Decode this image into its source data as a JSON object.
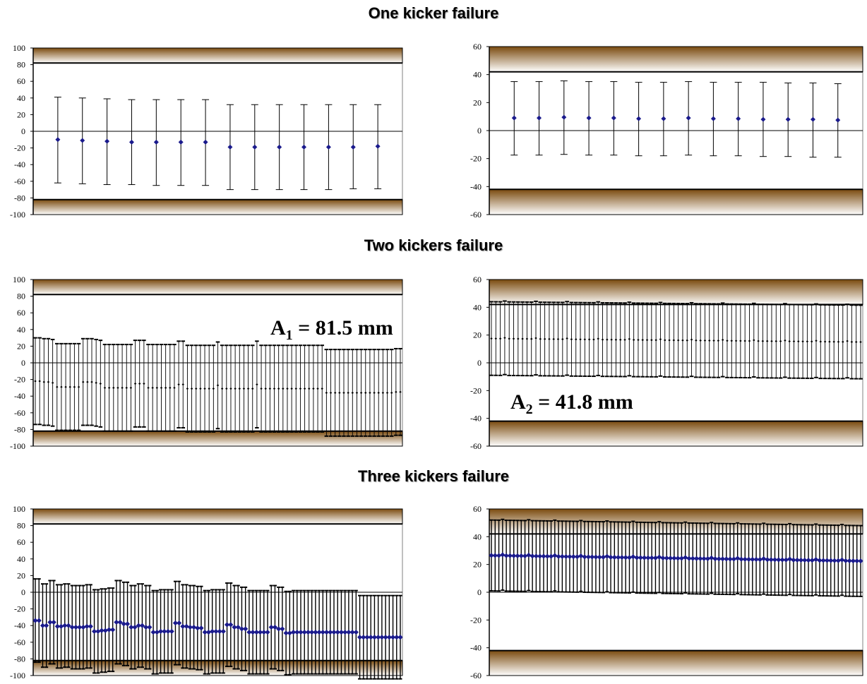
{
  "titles": {
    "one": "One kicker failure",
    "two": "Two kickers failure",
    "three": "Three kickers failure"
  },
  "colors": {
    "band_dark": "#7a4a0e",
    "band_light": "#ffffff",
    "marker_blue": "#1a1a8c",
    "marker_black": "#000000"
  },
  "chart_data": [
    {
      "type": "scatter",
      "title": "",
      "ylim": [
        -100,
        100
      ],
      "yticks": [
        "100",
        "80",
        "60",
        "40",
        "20",
        "0",
        "-20",
        "-40",
        "-60",
        "-80",
        "-100"
      ],
      "aperture_bands": [
        [
          82,
          100
        ],
        [
          -100,
          -82
        ]
      ],
      "series": [
        {
          "marker": "diamond",
          "y": [
            -10,
            -11,
            -12,
            -13,
            -13,
            -13,
            -13,
            -19,
            -19,
            -19,
            -19,
            -19,
            -19,
            -18
          ],
          "high": [
            41,
            40,
            39,
            38,
            38,
            38,
            38,
            32,
            32,
            32,
            32,
            32,
            32,
            32
          ],
          "low": [
            -62,
            -63,
            -64,
            -64,
            -65,
            -65,
            -65,
            -70,
            -70,
            -70,
            -70,
            -70,
            -69,
            -69
          ]
        }
      ]
    },
    {
      "type": "scatter",
      "title": "",
      "ylim": [
        -60,
        60
      ],
      "yticks": [
        "60",
        "40",
        "20",
        "0",
        "-20",
        "-40",
        "-60"
      ],
      "aperture_bands": [
        [
          42,
          60
        ],
        [
          -60,
          -42
        ]
      ],
      "series": [
        {
          "marker": "diamond",
          "y": [
            9,
            9,
            9.5,
            9,
            9,
            8.5,
            8.5,
            9,
            8.5,
            8.5,
            8,
            8,
            8,
            7.5
          ],
          "high": [
            35,
            35,
            35.5,
            35,
            35,
            34.5,
            34.5,
            35,
            34.5,
            34.5,
            34.5,
            34,
            34,
            33.5
          ],
          "low": [
            -17.5,
            -17.5,
            -17,
            -17.5,
            -17.5,
            -18,
            -18,
            -17.5,
            -18,
            -18,
            -18.5,
            -18.5,
            -19,
            -19
          ]
        }
      ]
    },
    {
      "type": "scatter",
      "title": "",
      "ylim": [
        -100,
        100
      ],
      "yticks": [
        "100",
        "80",
        "60",
        "40",
        "20",
        "0",
        "-20",
        "-40",
        "-60",
        "-80",
        "-100"
      ],
      "aperture_bands": [
        [
          82,
          100
        ],
        [
          -100,
          -82
        ]
      ],
      "annotation": {
        "text": "A",
        "sub": "1",
        "rest": " = 81.5 mm"
      },
      "series": [
        {
          "marker": "dot",
          "y": [
            -22,
            -22,
            -23,
            -23,
            -24,
            -29,
            -29,
            -29,
            -29,
            -29,
            -29,
            -23,
            -23,
            -23,
            -24,
            -25,
            -30,
            -30,
            -30,
            -30,
            -30,
            -30,
            -30,
            -25,
            -25,
            -25,
            -30,
            -30,
            -30,
            -30,
            -30,
            -30,
            -30,
            -26,
            -26,
            -31,
            -31,
            -31,
            -31,
            -31,
            -31,
            -31,
            -27,
            -31,
            -31,
            -31,
            -31,
            -31,
            -31,
            -31,
            -31,
            -26,
            -31,
            -31,
            -31,
            -31,
            -31,
            -31,
            -31,
            -31,
            -31,
            -31,
            -31,
            -31,
            -31,
            -31,
            -31,
            -36,
            -36,
            -36,
            -36,
            -36,
            -36,
            -36,
            -36,
            -36,
            -36,
            -36,
            -36,
            -36,
            -36,
            -36,
            -36,
            -35,
            -35
          ],
          "amplitude": 52
        }
      ]
    },
    {
      "type": "scatter",
      "title": "",
      "ylim": [
        -60,
        60
      ],
      "yticks": [
        "60",
        "40",
        "20",
        "0",
        "-20",
        "-40",
        "-60"
      ],
      "aperture_bands": [
        [
          42,
          60
        ],
        [
          -60,
          -42
        ]
      ],
      "annotation": {
        "text": "A",
        "sub": "2",
        "rest": " = 41.8 mm"
      },
      "series": [
        {
          "marker": "dot",
          "y_start": 17.5,
          "y_end": 15,
          "count": 84,
          "amplitude": 26.5
        }
      ]
    },
    {
      "type": "scatter",
      "title": "",
      "ylim": [
        -100,
        100
      ],
      "yticks": [
        "100",
        "80",
        "60",
        "40",
        "20",
        "0",
        "-20",
        "-40",
        "-60",
        "-80",
        "-100"
      ],
      "aperture_bands": [
        [
          82,
          100
        ],
        [
          -100,
          -82
        ]
      ],
      "series": [
        {
          "marker": "blue-diamond",
          "y_levels": [
            -34,
            -40,
            -36,
            -41,
            -40,
            -42,
            -42,
            -41,
            -47,
            -46,
            -45,
            -36,
            -38,
            -42,
            -40,
            -42,
            -48,
            -47,
            -47,
            -37,
            -41,
            -42,
            -43,
            -48,
            -47,
            -47,
            -39,
            -42,
            -44,
            -48,
            -48,
            -48,
            -42,
            -44,
            -49,
            -48,
            -48,
            -48,
            -48,
            -48,
            -48,
            -48,
            -48,
            -48,
            -54,
            -54,
            -54,
            -54,
            -54,
            -54
          ],
          "count": 100,
          "amplitude": 50
        }
      ]
    },
    {
      "type": "scatter",
      "title": "",
      "ylim": [
        -60,
        60
      ],
      "yticks": [
        "60",
        "40",
        "20",
        "0",
        "-20",
        "-40",
        "-60"
      ],
      "aperture_bands": [
        [
          42,
          60
        ],
        [
          -60,
          -42
        ]
      ],
      "series": [
        {
          "marker": "blue-diamond",
          "y_start": 26.5,
          "y_end": 22.5,
          "count": 100,
          "amplitude": 25.5
        }
      ]
    }
  ]
}
